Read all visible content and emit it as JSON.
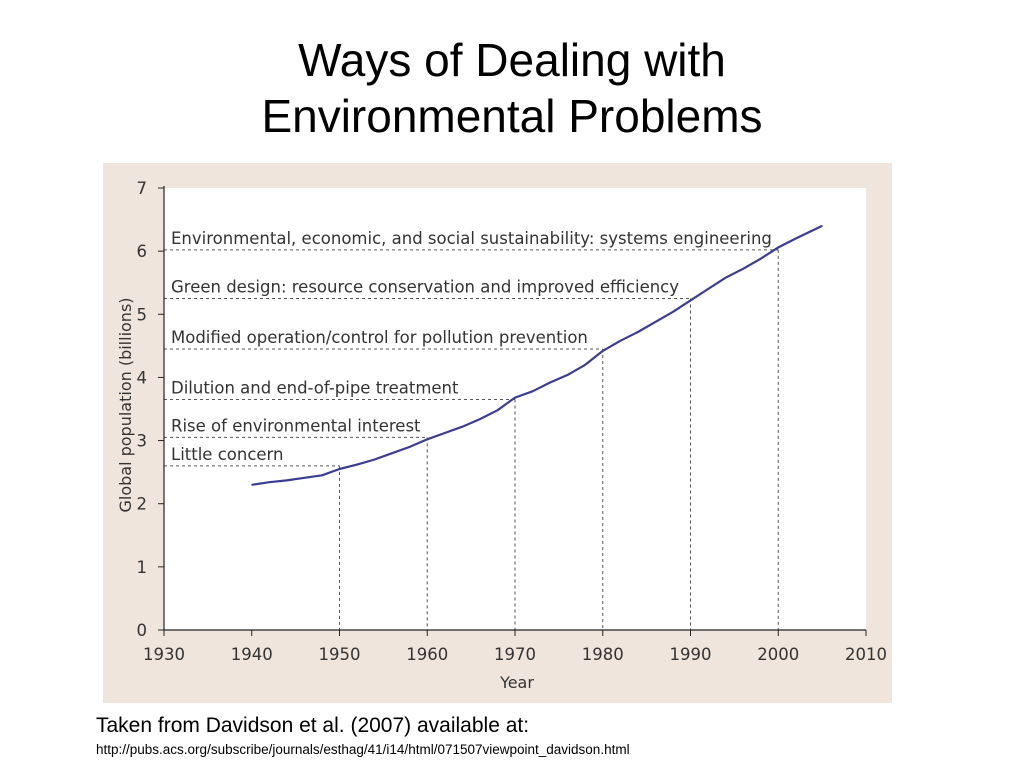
{
  "slide": {
    "title_line1": "Ways of Dealing with",
    "title_line2": "Environmental Problems",
    "caption": "Taken from Davidson et al. (2007) available at:",
    "source_url": "http://pubs.acs.org/subscribe/journals/esthag/41/i14/html/071507viewpoint_davidson.html"
  },
  "colors": {
    "panel_background": "#efe5dc",
    "plot_background": "#ffffff",
    "line": "#3a3d96",
    "guide": "#555555",
    "text": "#333333"
  },
  "chart_data": {
    "type": "line",
    "xlabel": "Year",
    "ylabel": "Global population (billions)",
    "xlim": [
      1930,
      2010
    ],
    "ylim": [
      0,
      7
    ],
    "xticks": [
      1930,
      1940,
      1950,
      1960,
      1970,
      1980,
      1990,
      2000,
      2010
    ],
    "yticks": [
      0,
      1,
      2,
      3,
      4,
      5,
      6,
      7
    ],
    "grid": false,
    "series": [
      {
        "x": [
          1940,
          1942,
          1944,
          1946,
          1948,
          1950,
          1952,
          1954,
          1956,
          1958,
          1960,
          1962,
          1964,
          1966,
          1968,
          1970,
          1972,
          1974,
          1976,
          1978,
          1980,
          1982,
          1984,
          1986,
          1988,
          1990,
          1992,
          1994,
          1996,
          1998,
          2000,
          2002,
          2005
        ],
        "y": [
          2.3,
          2.34,
          2.37,
          2.41,
          2.45,
          2.55,
          2.62,
          2.7,
          2.8,
          2.9,
          3.02,
          3.12,
          3.22,
          3.34,
          3.48,
          3.68,
          3.78,
          3.92,
          4.04,
          4.2,
          4.42,
          4.58,
          4.72,
          4.88,
          5.04,
          5.22,
          5.4,
          5.58,
          5.72,
          5.88,
          6.06,
          6.2,
          6.4
        ]
      }
    ],
    "annotations": [
      {
        "text": "Little concern",
        "y": 2.6,
        "x_end": 1950
      },
      {
        "text": "Rise of environmental interest",
        "y": 3.05,
        "x_end": 1960
      },
      {
        "text": "Dilution and end-of-pipe treatment",
        "y": 3.65,
        "x_end": 1970
      },
      {
        "text": "Modified operation/control for pollution prevention",
        "y": 4.45,
        "x_end": 1980
      },
      {
        "text": "Green design: resource conservation and improved efficiency",
        "y": 5.25,
        "x_end": 1990
      },
      {
        "text": "Environmental, economic, and social sustainability: systems engineering",
        "y": 6.02,
        "x_end": 2000
      }
    ]
  }
}
